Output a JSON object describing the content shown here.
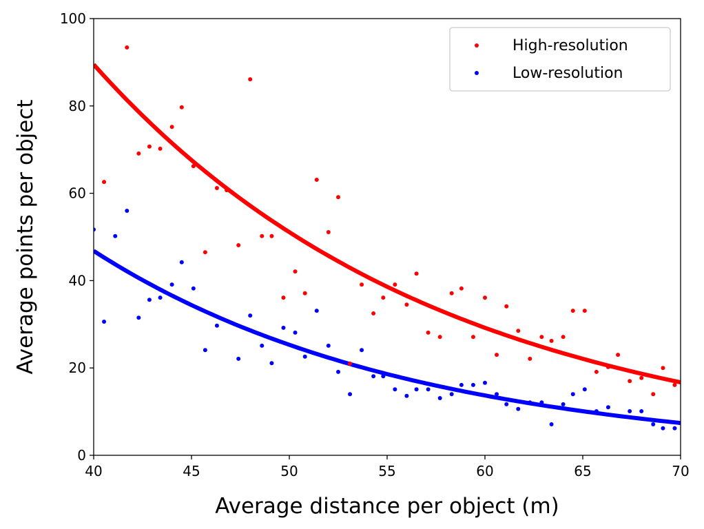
{
  "chart_data": {
    "type": "scatter",
    "title": "",
    "xlabel": "Average distance per object (m)",
    "ylabel": "Average points per object",
    "xlim": [
      40,
      70
    ],
    "ylim": [
      0,
      100
    ],
    "xticks": [
      40,
      45,
      50,
      55,
      60,
      65,
      70
    ],
    "yticks": [
      0,
      20,
      40,
      60,
      80,
      100
    ],
    "grid": false,
    "legend_position": "top-right",
    "series": [
      {
        "name": "High-resolution",
        "color": "#ff0000",
        "points": [
          [
            40.53,
            62.6
          ],
          [
            41.7,
            93.4
          ],
          [
            42.3,
            69.1
          ],
          [
            42.85,
            70.7
          ],
          [
            43.4,
            70.2
          ],
          [
            44.0,
            75.2
          ],
          [
            44.5,
            79.7
          ],
          [
            45.1,
            66.2
          ],
          [
            45.7,
            46.5
          ],
          [
            46.3,
            61.2
          ],
          [
            46.8,
            60.7
          ],
          [
            47.4,
            48.1
          ],
          [
            48.0,
            86.1
          ],
          [
            48.6,
            50.2
          ],
          [
            49.1,
            50.2
          ],
          [
            49.7,
            36.1
          ],
          [
            50.3,
            42.1
          ],
          [
            50.8,
            37.1
          ],
          [
            51.4,
            63.1
          ],
          [
            52.0,
            51.1
          ],
          [
            52.5,
            59.1
          ],
          [
            53.1,
            21.0
          ],
          [
            53.7,
            39.1
          ],
          [
            54.3,
            32.5
          ],
          [
            54.8,
            36.1
          ],
          [
            55.4,
            39.1
          ],
          [
            56.0,
            34.5
          ],
          [
            56.5,
            41.6
          ],
          [
            57.1,
            28.1
          ],
          [
            57.7,
            27.1
          ],
          [
            58.3,
            37.1
          ],
          [
            58.8,
            38.2
          ],
          [
            59.4,
            27.1
          ],
          [
            60.0,
            36.1
          ],
          [
            60.6,
            23.0
          ],
          [
            61.1,
            34.1
          ],
          [
            61.7,
            28.5
          ],
          [
            62.3,
            22.1
          ],
          [
            62.9,
            27.1
          ],
          [
            63.4,
            26.2
          ],
          [
            64.0,
            27.1
          ],
          [
            64.5,
            33.1
          ],
          [
            65.1,
            33.1
          ],
          [
            65.7,
            19.1
          ],
          [
            66.3,
            20.2
          ],
          [
            66.8,
            23.0
          ],
          [
            67.4,
            17.0
          ],
          [
            68.0,
            17.7
          ],
          [
            68.6,
            14.0
          ],
          [
            69.1,
            20.0
          ],
          [
            69.7,
            16.1
          ]
        ],
        "fit_curve": [
          [
            40,
            89.5
          ],
          [
            45,
            67.6
          ],
          [
            50,
            51.1
          ],
          [
            55,
            38.6
          ],
          [
            60,
            29.2
          ],
          [
            65,
            22.1
          ],
          [
            70,
            16.7
          ]
        ]
      },
      {
        "name": "Low-resolution",
        "color": "#0000ff",
        "points": [
          [
            40.0,
            51.7
          ],
          [
            40.53,
            30.6
          ],
          [
            41.1,
            50.2
          ],
          [
            41.7,
            56.0
          ],
          [
            42.3,
            31.5
          ],
          [
            42.85,
            35.6
          ],
          [
            43.4,
            36.1
          ],
          [
            44.0,
            39.1
          ],
          [
            44.5,
            44.2
          ],
          [
            45.1,
            38.2
          ],
          [
            45.7,
            24.1
          ],
          [
            46.3,
            29.7
          ],
          [
            47.4,
            22.1
          ],
          [
            48.0,
            32.0
          ],
          [
            48.6,
            25.1
          ],
          [
            49.1,
            21.1
          ],
          [
            49.7,
            29.2
          ],
          [
            50.3,
            28.1
          ],
          [
            50.8,
            22.6
          ],
          [
            51.4,
            33.1
          ],
          [
            52.0,
            25.1
          ],
          [
            52.5,
            19.1
          ],
          [
            53.1,
            14.0
          ],
          [
            53.7,
            24.1
          ],
          [
            54.3,
            18.1
          ],
          [
            54.8,
            18.1
          ],
          [
            55.4,
            15.1
          ],
          [
            56.0,
            13.6
          ],
          [
            56.5,
            15.1
          ],
          [
            57.1,
            15.1
          ],
          [
            57.7,
            13.1
          ],
          [
            58.3,
            14.0
          ],
          [
            58.8,
            16.1
          ],
          [
            59.4,
            16.1
          ],
          [
            60.0,
            16.6
          ],
          [
            60.6,
            14.0
          ],
          [
            61.1,
            11.7
          ],
          [
            61.7,
            10.6
          ],
          [
            62.3,
            12.1
          ],
          [
            62.9,
            12.1
          ],
          [
            63.4,
            7.1
          ],
          [
            64.0,
            11.7
          ],
          [
            64.5,
            14.0
          ],
          [
            65.1,
            15.1
          ],
          [
            65.7,
            10.1
          ],
          [
            66.3,
            11.0
          ],
          [
            67.4,
            10.1
          ],
          [
            68.0,
            10.1
          ],
          [
            68.6,
            7.1
          ],
          [
            69.1,
            6.2
          ],
          [
            69.7,
            6.2
          ]
        ],
        "fit_curve": [
          [
            40,
            46.8
          ],
          [
            45,
            34.4
          ],
          [
            50,
            25.3
          ],
          [
            55,
            18.6
          ],
          [
            60,
            13.7
          ],
          [
            65,
            10.1
          ],
          [
            70,
            7.4
          ]
        ]
      }
    ]
  }
}
